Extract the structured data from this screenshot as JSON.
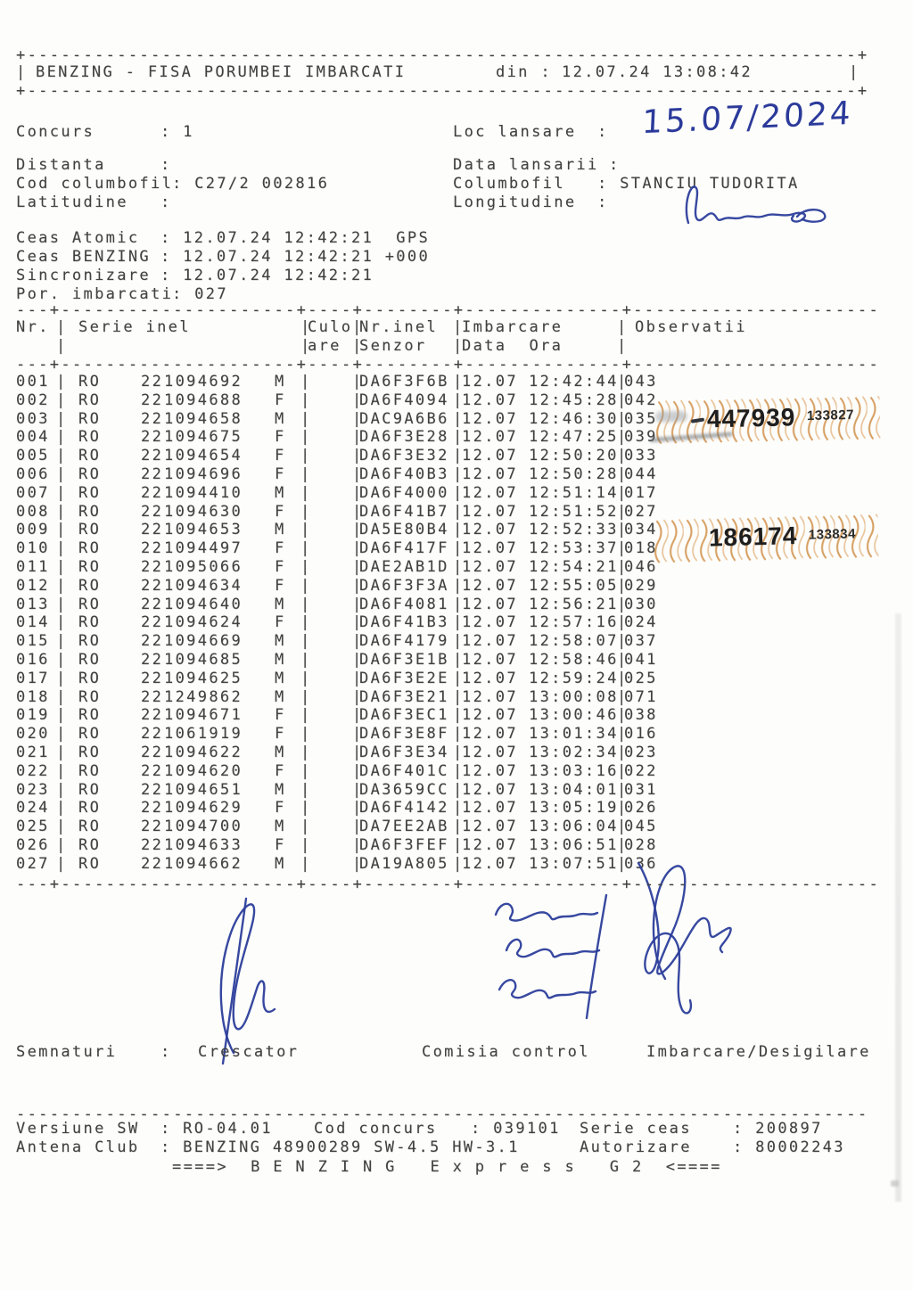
{
  "header": {
    "title": "BENZING - FISA PORUMBEI IMBARCATI",
    "din_label": "din :",
    "din_value": "12.07.24 13:08:42"
  },
  "info_left": [
    {
      "label": "Concurs",
      "rest": ": 1"
    },
    {
      "label": "Distanta",
      "rest": ":"
    },
    {
      "label": "Cod columbofil",
      "rest": ": C27/2 002816"
    },
    {
      "label": "Latitudine",
      "rest": ":"
    },
    {
      "label": "Ceas Atomic",
      "rest": ": 12.07.24 12:42:21  GPS"
    },
    {
      "label": "Ceas BENZING",
      "rest": ": 12.07.24 12:42:21 +000"
    },
    {
      "label": "Sincronizare",
      "rest": ": 12.07.24 12:42:21"
    },
    {
      "label": "Por. imbarcati",
      "rest": ": 027"
    }
  ],
  "info_right": [
    {
      "label": "Loc lansare",
      "rest": ":"
    },
    {
      "label": "Data lansarii",
      "rest": ":"
    },
    {
      "label": "Columbofil",
      "rest": ": STANCIU TUDORITA"
    },
    {
      "label": "Longitudine",
      "rest": ":"
    }
  ],
  "handwriting": {
    "date": "15.07/2024"
  },
  "table": {
    "headers": {
      "nr": "Nr.",
      "serie": "Serie inel",
      "culoare_1": "Culo",
      "culoare_2": "are",
      "senzor_1": "Nr.inel",
      "senzor_2": "Senzor",
      "imbarcare_1": "Imbarcare",
      "imbarcare_2": "Data  Ora",
      "observatii": "Observatii"
    },
    "rows": [
      [
        "001",
        "RO",
        "22",
        "1094692",
        "M",
        "DA6F3F6B",
        "12.07",
        "12:42:44",
        "043"
      ],
      [
        "002",
        "RO",
        "22",
        "1094688",
        "F",
        "DA6F4094",
        "12.07",
        "12:45:28",
        "042"
      ],
      [
        "003",
        "RO",
        "22",
        "1094658",
        "M",
        "DAC9A6B6",
        "12.07",
        "12:46:30",
        "035"
      ],
      [
        "004",
        "RO",
        "22",
        "1094675",
        "F",
        "DA6F3E28",
        "12.07",
        "12:47:25",
        "039"
      ],
      [
        "005",
        "RO",
        "22",
        "1094654",
        "F",
        "DA6F3E32",
        "12.07",
        "12:50:20",
        "033"
      ],
      [
        "006",
        "RO",
        "22",
        "1094696",
        "F",
        "DA6F40B3",
        "12.07",
        "12:50:28",
        "044"
      ],
      [
        "007",
        "RO",
        "22",
        "1094410",
        "M",
        "DA6F4000",
        "12.07",
        "12:51:14",
        "017"
      ],
      [
        "008",
        "RO",
        "22",
        "1094630",
        "F",
        "DA6F41B7",
        "12.07",
        "12:51:52",
        "027"
      ],
      [
        "009",
        "RO",
        "22",
        "1094653",
        "M",
        "DA5E80B4",
        "12.07",
        "12:52:33",
        "034"
      ],
      [
        "010",
        "RO",
        "22",
        "1094497",
        "F",
        "DA6F417F",
        "12.07",
        "12:53:37",
        "018"
      ],
      [
        "011",
        "RO",
        "22",
        "1095066",
        "F",
        "DAE2AB1D",
        "12.07",
        "12:54:21",
        "046"
      ],
      [
        "012",
        "RO",
        "22",
        "1094634",
        "F",
        "DA6F3F3A",
        "12.07",
        "12:55:05",
        "029"
      ],
      [
        "013",
        "RO",
        "22",
        "1094640",
        "M",
        "DA6F4081",
        "12.07",
        "12:56:21",
        "030"
      ],
      [
        "014",
        "RO",
        "22",
        "1094624",
        "F",
        "DA6F41B3",
        "12.07",
        "12:57:16",
        "024"
      ],
      [
        "015",
        "RO",
        "22",
        "1094669",
        "M",
        "DA6F4179",
        "12.07",
        "12:58:07",
        "037"
      ],
      [
        "016",
        "RO",
        "22",
        "1094685",
        "M",
        "DA6F3E1B",
        "12.07",
        "12:58:46",
        "041"
      ],
      [
        "017",
        "RO",
        "22",
        "1094625",
        "M",
        "DA6F3E2E",
        "12.07",
        "12:59:24",
        "025"
      ],
      [
        "018",
        "RO",
        "22",
        "1249862",
        "M",
        "DA6F3E21",
        "12.07",
        "13:00:08",
        "071"
      ],
      [
        "019",
        "RO",
        "22",
        "1094671",
        "F",
        "DA6F3EC1",
        "12.07",
        "13:00:46",
        "038"
      ],
      [
        "020",
        "RO",
        "22",
        "1061919",
        "F",
        "DA6F3E8F",
        "12.07",
        "13:01:34",
        "016"
      ],
      [
        "021",
        "RO",
        "22",
        "1094622",
        "M",
        "DA6F3E34",
        "12.07",
        "13:02:34",
        "023"
      ],
      [
        "022",
        "RO",
        "22",
        "1094620",
        "F",
        "DA6F401C",
        "12.07",
        "13:03:16",
        "022"
      ],
      [
        "023",
        "RO",
        "22",
        "1094651",
        "M",
        "DA3659CC",
        "12.07",
        "13:04:01",
        "031"
      ],
      [
        "024",
        "RO",
        "22",
        "1094629",
        "F",
        "DA6F4142",
        "12.07",
        "13:05:19",
        "026"
      ],
      [
        "025",
        "RO",
        "22",
        "1094700",
        "M",
        "DA7EE2AB",
        "12.07",
        "13:06:04",
        "045"
      ],
      [
        "026",
        "RO",
        "22",
        "1094633",
        "F",
        "DA6F3FEF",
        "12.07",
        "13:06:51",
        "028"
      ],
      [
        "027",
        "RO",
        "22",
        "1094662",
        "M",
        "DA19A805",
        "12.07",
        "13:07:51",
        "036"
      ]
    ]
  },
  "stamps": [
    {
      "number": "447939",
      "code": "133827"
    },
    {
      "number": "186174",
      "code": "133834"
    }
  ],
  "signatures_section": {
    "semnaturi_label": "Semnaturi",
    "semnaturi_colon": ":",
    "crescator_label": "Crescator",
    "comisia_label": "Comisia control",
    "imbarcare_label": "Imbarcare/Desigilare"
  },
  "footer": {
    "versiune_label": "Versiune SW",
    "versiune_rest": ": RO-04.01",
    "cod_concurs_label": "Cod concurs",
    "cod_concurs_rest": ": 039101",
    "serie_ceas_label": "Serie ceas",
    "serie_ceas_rest": ": 200897",
    "antena_label": "Antena Club",
    "antena_rest": ": BENZING 48900289 SW-4.5 HW-3.1",
    "autorizare_label": "Autorizare",
    "autorizare_rest": ": 80002243",
    "benzing_line": "====>  B E N Z I N G   E x p r e s s   G 2  <===="
  },
  "colors": {
    "ink": "#414141",
    "pen_blue": "#2c3e9b",
    "stamp_orange": "#cd8a3f",
    "stamp_number_black": "#1e1e1e"
  }
}
